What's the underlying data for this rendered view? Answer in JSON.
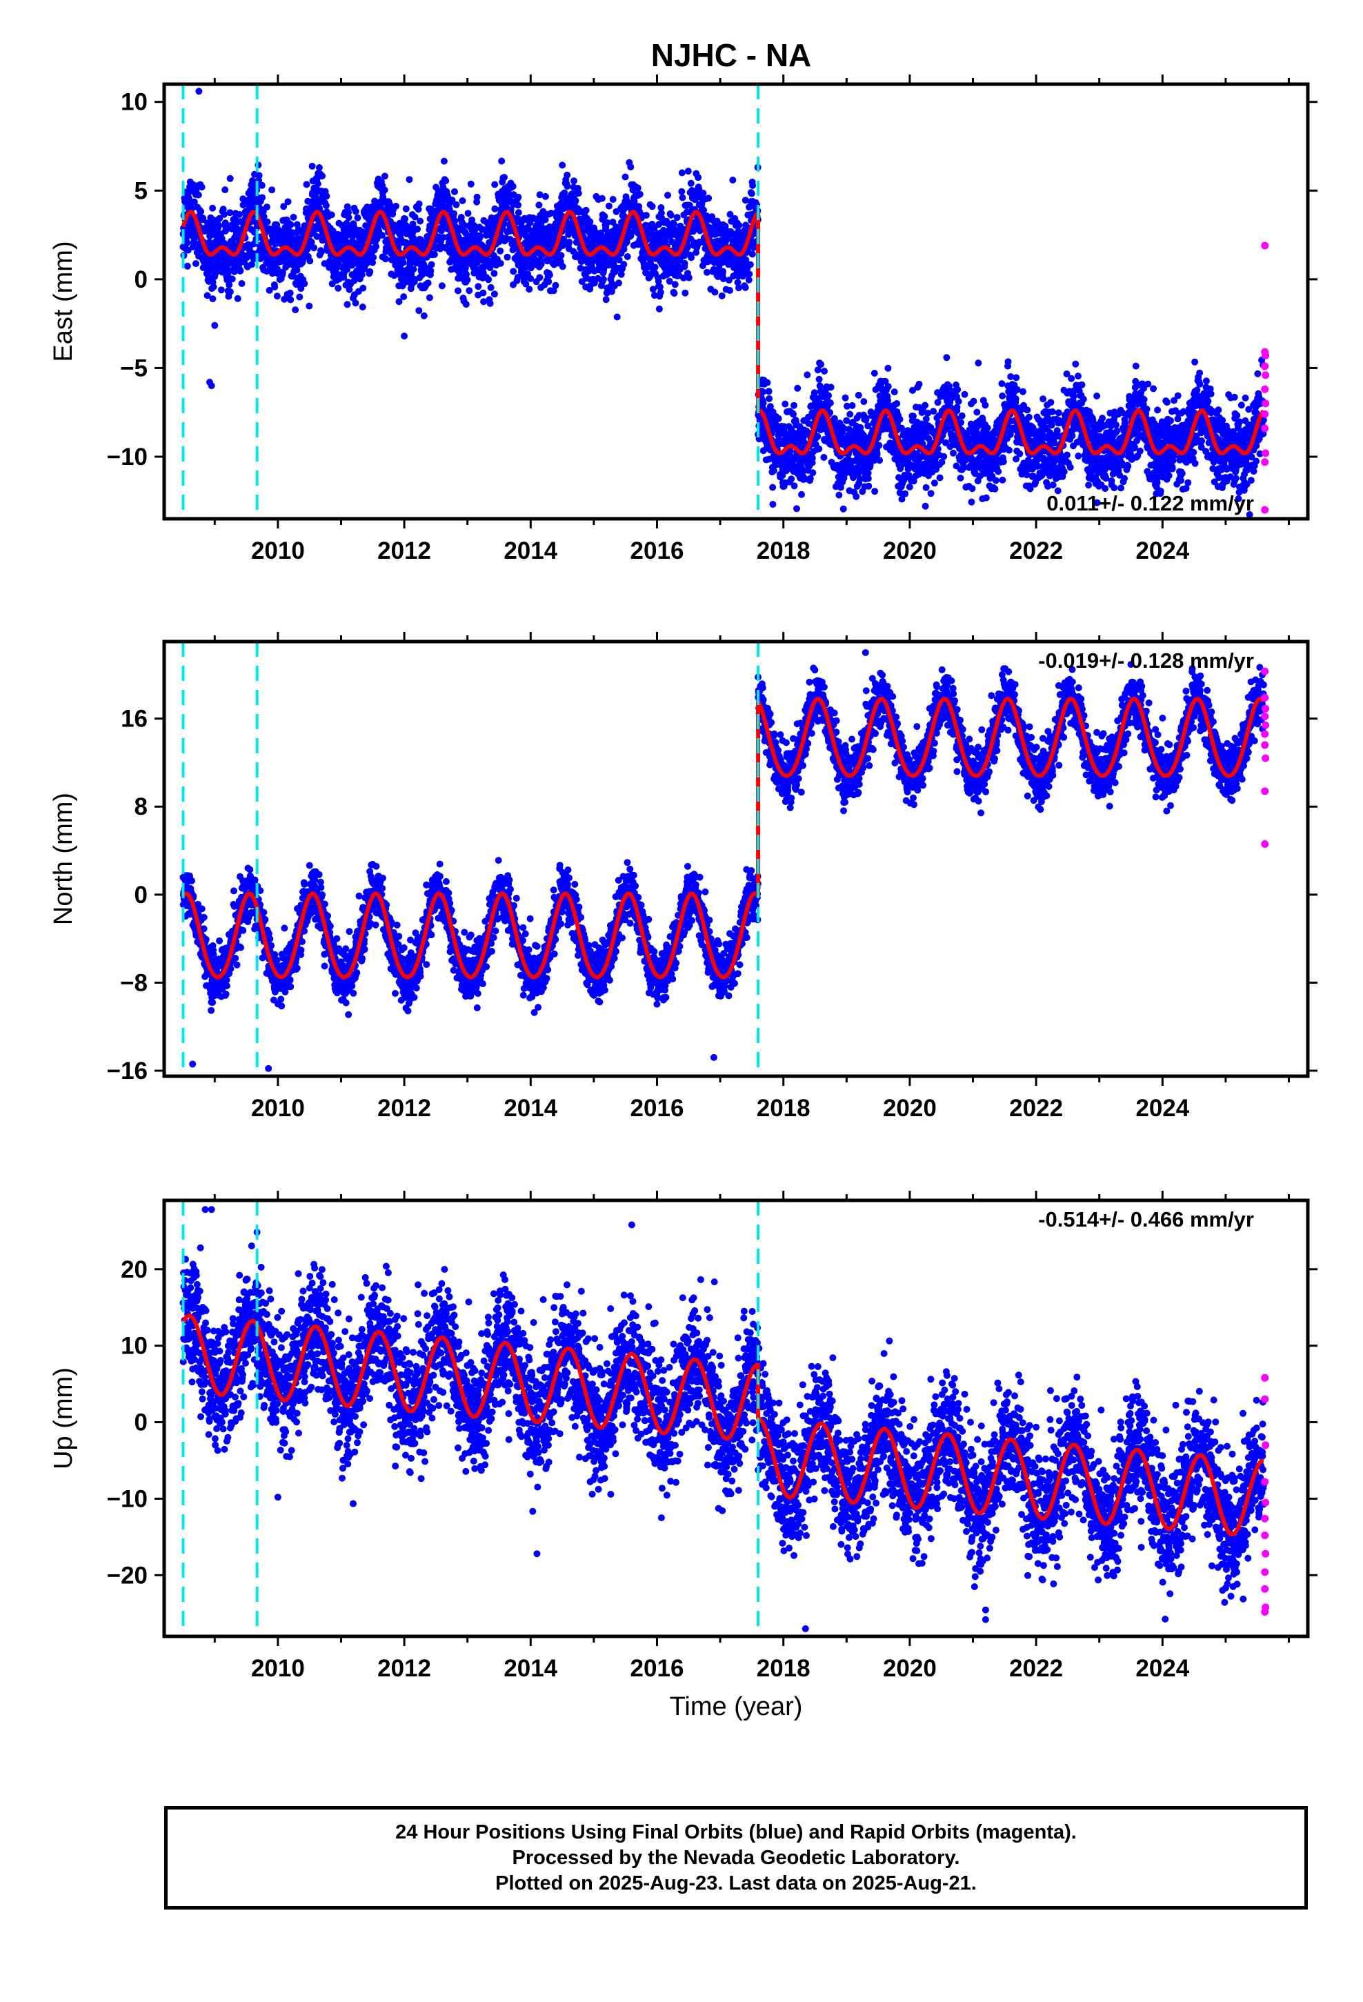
{
  "title": "NJHC - NA",
  "xlabel": "Time (year)",
  "colors": {
    "final": "#0000ff",
    "rapid": "#ff00ff",
    "model": "#ff0000",
    "offset": "#00e5ee",
    "frame": "#000000"
  },
  "caption": {
    "line1": "24 Hour Positions Using Final Orbits (blue) and Rapid Orbits (magenta).",
    "line2": "Processed by the Nevada Geodetic Laboratory.",
    "line3": "Plotted on 2025-Aug-23. Last data on 2025-Aug-21."
  },
  "chart_data": [
    {
      "type": "scatter",
      "component": "east",
      "ylabel": "East (mm)",
      "xlim": [
        2008.2,
        2026.3
      ],
      "ylim": [
        -13.5,
        11.0
      ],
      "yticks": [
        -10,
        -5,
        0,
        5,
        10
      ],
      "xticks": [
        2010,
        2012,
        2014,
        2016,
        2018,
        2020,
        2022,
        2024
      ],
      "rate_label": "0.011+/- 0.122 mm/yr",
      "offset_lines": [
        2008.5,
        2009.67,
        2017.6
      ],
      "series": [
        {
          "kind": "final-points",
          "segments": [
            {
              "x_range": [
                2008.5,
                2017.6
              ],
              "mean": 2.2,
              "amp_annual": 1.0,
              "amp_semiannual": 0.6,
              "phase": 0.62,
              "scatter": 1.1
            },
            {
              "x_range": [
                2017.6,
                2025.6
              ],
              "mean": -9.0,
              "amp_annual": 1.0,
              "amp_semiannual": 0.6,
              "phase": 0.62,
              "scatter": 1.1
            }
          ],
          "outliers": [
            [
              2008.75,
              10.6
            ],
            [
              2008.95,
              -6.0
            ],
            [
              2008.92,
              -5.8
            ],
            [
              2009.0,
              -2.6
            ],
            [
              2012.0,
              -3.2
            ]
          ]
        },
        {
          "kind": "model-line",
          "segments": [
            {
              "x_range": [
                2008.5,
                2017.6
              ],
              "mean": 2.2,
              "amp_annual": 1.0,
              "amp_semiannual": 0.6,
              "phase": 0.62
            },
            {
              "x_range": [
                2017.6,
                2025.6
              ],
              "mean": -9.0,
              "amp_annual": 1.0,
              "amp_semiannual": 0.6,
              "phase": 0.62
            }
          ]
        },
        {
          "kind": "rapid-points",
          "x": [
            2025.62,
            2025.62,
            2025.63,
            2025.62,
            2025.63,
            2025.62,
            2025.63,
            2025.62,
            2025.62,
            2025.63,
            2025.62,
            2025.62
          ],
          "y": [
            1.9,
            -4.1,
            -4.3,
            -4.9,
            -5.4,
            -6.2,
            -7.0,
            -7.6,
            -8.4,
            -9.8,
            -10.3,
            -13.0
          ]
        }
      ]
    },
    {
      "type": "scatter",
      "component": "north",
      "ylabel": "North (mm)",
      "xlim": [
        2008.2,
        2026.3
      ],
      "ylim": [
        -16.5,
        23.0
      ],
      "yticks": [
        -16,
        -8,
        0,
        8,
        16
      ],
      "xticks": [
        2010,
        2012,
        2014,
        2016,
        2018,
        2020,
        2022,
        2024
      ],
      "rate_label": "-0.019+/- 0.128 mm/yr",
      "offset_lines": [
        2008.5,
        2009.67,
        2017.6
      ],
      "series": [
        {
          "kind": "final-points",
          "segments": [
            {
              "x_range": [
                2008.5,
                2017.6
              ],
              "mean": -4.0,
              "amp_annual": 3.8,
              "amp_semiannual": 0.3,
              "phase": 0.55,
              "scatter": 1.2
            },
            {
              "x_range": [
                2017.6,
                2025.6
              ],
              "mean": 14.0,
              "amp_annual": 3.5,
              "amp_semiannual": 0.3,
              "phase": 0.55,
              "scatter": 1.2
            }
          ],
          "outliers": [
            [
              2008.65,
              -15.4
            ],
            [
              2009.85,
              -15.8
            ],
            [
              2016.9,
              -14.8
            ],
            [
              2019.3,
              22.0
            ]
          ]
        },
        {
          "kind": "model-line",
          "segments": [
            {
              "x_range": [
                2008.5,
                2017.6
              ],
              "mean": -4.0,
              "amp_annual": 3.8,
              "amp_semiannual": 0.3,
              "phase": 0.55
            },
            {
              "x_range": [
                2017.6,
                2025.6
              ],
              "mean": 14.0,
              "amp_annual": 3.5,
              "amp_semiannual": 0.3,
              "phase": 0.55
            }
          ]
        },
        {
          "kind": "rapid-points",
          "x": [
            2025.62,
            2025.62,
            2025.63,
            2025.62,
            2025.63,
            2025.62,
            2025.62,
            2025.63,
            2025.62,
            2025.62
          ],
          "y": [
            20.3,
            17.9,
            16.9,
            16.2,
            15.4,
            14.6,
            13.6,
            12.4,
            9.4,
            4.6
          ]
        }
      ]
    },
    {
      "type": "scatter",
      "component": "up",
      "ylabel": "Up (mm)",
      "xlim": [
        2008.2,
        2026.3
      ],
      "ylim": [
        -28.0,
        29.0
      ],
      "yticks": [
        -20,
        -10,
        0,
        10,
        20
      ],
      "xticks": [
        2010,
        2012,
        2014,
        2016,
        2018,
        2020,
        2022,
        2024
      ],
      "rate_label": "-0.514+/- 0.466 mm/yr",
      "offset_lines": [
        2008.5,
        2009.67,
        2017.6
      ],
      "series": [
        {
          "kind": "final-points",
          "segments": [
            {
              "x_range": [
                2008.5,
                2017.6
              ],
              "mean_start": 9.0,
              "mean_end": 2.5,
              "amp_annual": 5.0,
              "amp_semiannual": 0.0,
              "phase": 0.6,
              "scatter": 4.0
            },
            {
              "x_range": [
                2017.6,
                2025.6
              ],
              "mean_start": -4.5,
              "mean_end": -10.0,
              "amp_annual": 5.0,
              "amp_semiannual": 0.0,
              "phase": 0.6,
              "scatter": 4.0
            }
          ],
          "outliers": [
            [
              2008.85,
              27.8
            ],
            [
              2008.95,
              27.8
            ],
            [
              2015.6,
              25.8
            ],
            [
              2014.1,
              -17.2
            ],
            [
              2018.35,
              -27.0
            ],
            [
              2021.2,
              -25.8
            ],
            [
              2010.0,
              -9.8
            ]
          ]
        },
        {
          "kind": "model-line",
          "segments": [
            {
              "x_range": [
                2008.5,
                2017.6
              ],
              "mean_start": 9.0,
              "mean_end": 2.5,
              "amp_annual": 5.0,
              "amp_semiannual": 0.0,
              "phase": 0.6
            },
            {
              "x_range": [
                2017.6,
                2025.6
              ],
              "mean_start": -4.5,
              "mean_end": -10.0,
              "amp_annual": 5.0,
              "amp_semiannual": 0.0,
              "phase": 0.6
            }
          ]
        },
        {
          "kind": "rapid-points",
          "x": [
            2025.62,
            2025.62,
            2025.63,
            2025.62,
            2025.63,
            2025.62,
            2025.62,
            2025.63,
            2025.62,
            2025.62,
            2025.63,
            2025.62
          ],
          "y": [
            5.8,
            3.0,
            -3.0,
            -7.8,
            -10.5,
            -12.6,
            -14.8,
            -17.2,
            -19.6,
            -21.8,
            -24.2,
            -24.8
          ]
        }
      ]
    }
  ]
}
